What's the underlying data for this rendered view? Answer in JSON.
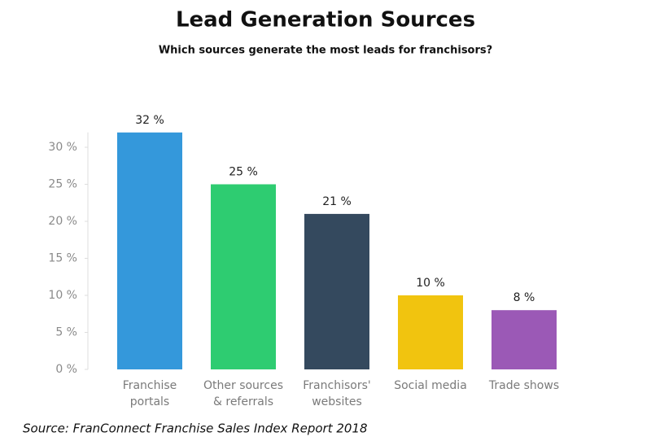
{
  "chart_data": {
    "type": "bar",
    "title": "Lead Generation Sources",
    "subtitle": "Which sources generate the most leads for franchisors?",
    "source": "Source: FranConnect Franchise Sales Index Report 2018",
    "categories": [
      "Franchise\nportals",
      "Other sources\n& referrals",
      "Franchisors'\nwebsites",
      "Social media",
      "Trade shows"
    ],
    "values": [
      32,
      25,
      21,
      10,
      8
    ],
    "value_labels": [
      "32 %",
      "25 %",
      "21 %",
      "10 %",
      "8 %"
    ],
    "colors": [
      "#3498db",
      "#2ecc71",
      "#34495e",
      "#f1c40f",
      "#9b59b6"
    ],
    "ylim": [
      0,
      32
    ],
    "yticks": [
      {
        "value": 0,
        "label": "0 %"
      },
      {
        "value": 5,
        "label": "5 %"
      },
      {
        "value": 10,
        "label": "10 %"
      },
      {
        "value": 15,
        "label": "15 %"
      },
      {
        "value": 20,
        "label": "20 %"
      },
      {
        "value": 25,
        "label": "25 %"
      },
      {
        "value": 30,
        "label": "30 %"
      }
    ],
    "grid": false
  }
}
